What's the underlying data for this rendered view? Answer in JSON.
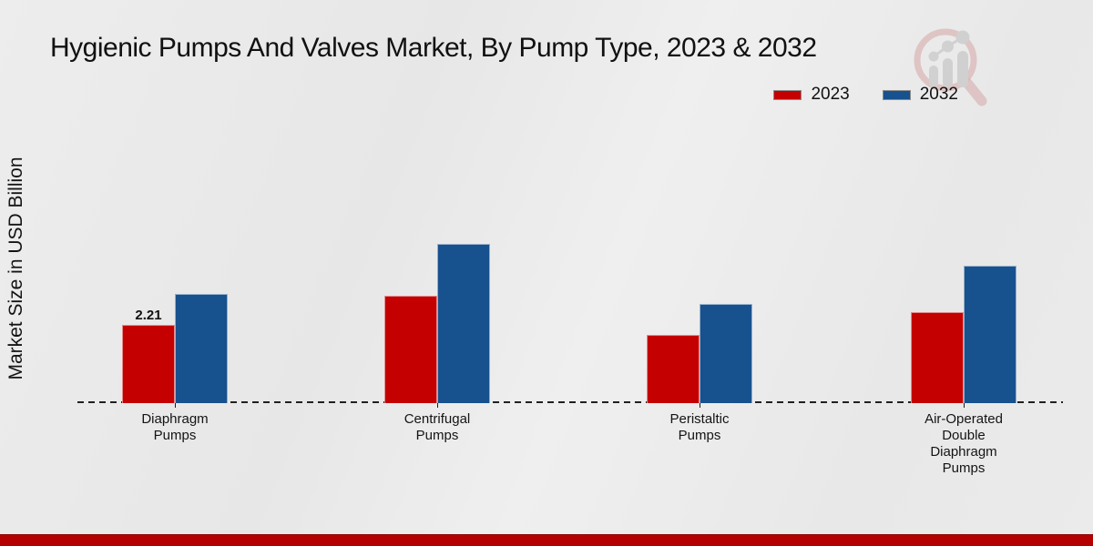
{
  "title": "Hygienic Pumps And Valves Market, By Pump Type, 2023 & 2032",
  "y_axis_label": "Market Size in USD Billion",
  "legend": [
    {
      "label": "2023",
      "color": "#c40000"
    },
    {
      "label": "2032",
      "color": "#17518e"
    }
  ],
  "colors": {
    "series_2023": "#c40000",
    "series_2032": "#17518e",
    "footer_band": "#b40000",
    "background": "#eaeaea",
    "text": "#111111"
  },
  "watermark_icon": "magnifier-growth-chart-logo",
  "chart_data": {
    "type": "bar",
    "title": "Hygienic Pumps And Valves Market, By Pump Type, 2023 & 2032",
    "categories": [
      "Diaphragm Pumps",
      "Centrifugal Pumps",
      "Peristaltic Pumps",
      "Air-Operated Double Diaphragm Pumps"
    ],
    "categories_lines": [
      [
        "Diaphragm",
        "Pumps"
      ],
      [
        "Centrifugal",
        "Pumps"
      ],
      [
        "Peristaltic",
        "Pumps"
      ],
      [
        "Air-Operated",
        "Double",
        "Diaphragm",
        "Pumps"
      ]
    ],
    "series": [
      {
        "name": "2023",
        "color": "#c40000",
        "values": [
          2.21,
          3.03,
          1.93,
          2.57
        ]
      },
      {
        "name": "2032",
        "color": "#17518e",
        "values": [
          3.08,
          4.5,
          2.8,
          3.88
        ]
      }
    ],
    "bar_labels": [
      {
        "series_index": 0,
        "category_index": 0,
        "text": "2.21"
      }
    ],
    "xlabel": "",
    "ylabel": "Market Size in USD Billion",
    "ylim": [
      0,
      5
    ],
    "grid": false,
    "legend_position": "top-right",
    "baseline_style": "dashed"
  }
}
